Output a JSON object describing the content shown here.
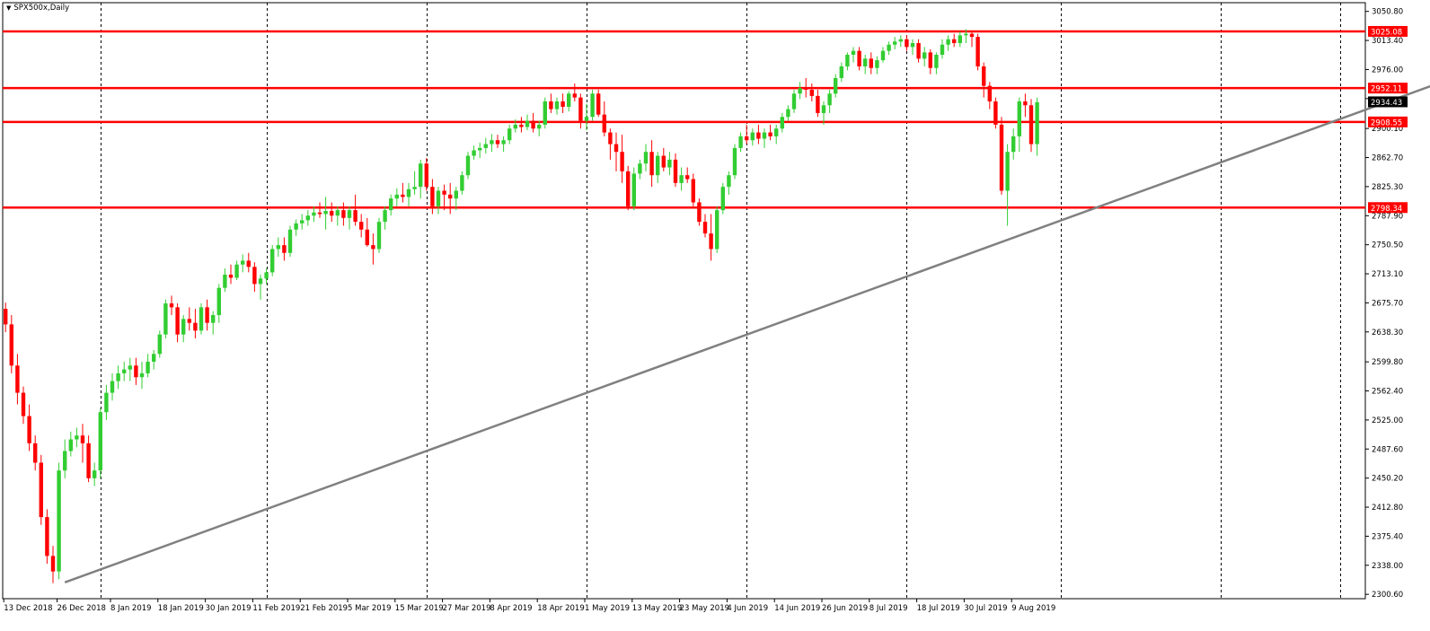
{
  "symbol": {
    "name": "SPX500x,Daily"
  },
  "colors": {
    "bull": "#32CD32",
    "bear": "#FF0000",
    "bull_wick": "#32CD32",
    "bear_wick": "#FF0000",
    "hline": "#FF0000",
    "trendline": "#808080",
    "grid": "#000000",
    "bid_box": "#000000",
    "level_box": "#FF0000"
  },
  "chart_data": {
    "type": "candlestick",
    "y_ticks": [
      3050.8,
      3013.4,
      2976.0,
      2938.6,
      2900.1,
      2862.7,
      2825.3,
      2787.9,
      2750.5,
      2713.1,
      2675.7,
      2638.3,
      2599.8,
      2562.4,
      2525.0,
      2487.6,
      2450.2,
      2412.8,
      2375.4,
      2338.0,
      2300.6
    ],
    "y_tick_labels": [
      "3050.80",
      "3013.40",
      "2976.00",
      "",
      "2900.10",
      "2862.70",
      "2825.30",
      "2787.90",
      "2750.50",
      "2713.10",
      "2675.70",
      "2638.30",
      "2599.80",
      "2562.40",
      "2525.00",
      "2487.60",
      "2450.20",
      "2412.80",
      "2375.40",
      "2338.00",
      "2300.60"
    ],
    "ylim": [
      2295.0,
      3062.0
    ],
    "x_labels": [
      "13 Dec 2018",
      "26 Dec 2018",
      "8 Jan 2019",
      "18 Jan 2019",
      "30 Jan 2019",
      "11 Feb 2019",
      "21 Feb 2019",
      "5 Mar 2019",
      "15 Mar 2019",
      "27 Mar 2019",
      "8 Apr 2019",
      "18 Apr 2019",
      "1 May 2019",
      "13 May 2019",
      "23 May 2019",
      "4 Jun 2019",
      "14 Jun 2019",
      "26 Jun 2019",
      "8 Jul 2019",
      "18 Jul 2019",
      "30 Jul 2019",
      "9 Aug 2019"
    ],
    "x_label_bar": [
      0,
      9,
      18,
      26,
      34,
      42,
      50,
      58,
      66,
      74,
      82,
      90,
      98,
      106,
      114,
      122,
      130,
      138,
      146,
      154,
      162,
      170
    ],
    "vgrid_bars": [
      16,
      44,
      71,
      98,
      125,
      152,
      178,
      205
    ],
    "horizontal_levels": [
      3025.08,
      2952.11,
      2908.55,
      2798.34
    ],
    "horizontal_level_labels": [
      "3025.08",
      "2952.11",
      "2908.55",
      "2798.34"
    ],
    "current_price": 2934.43,
    "current_price_label": "2934.43",
    "trendline": {
      "start": {
        "bar": 10,
        "price": 2316
      },
      "end": {
        "bar": 247,
        "price": 2973
      }
    },
    "candles": [
      [
        2668,
        2676,
        2638,
        2648
      ],
      [
        2648,
        2660,
        2585,
        2595
      ],
      [
        2595,
        2610,
        2545,
        2560
      ],
      [
        2560,
        2568,
        2520,
        2530
      ],
      [
        2530,
        2545,
        2485,
        2495
      ],
      [
        2495,
        2505,
        2460,
        2470
      ],
      [
        2470,
        2480,
        2390,
        2400
      ],
      [
        2400,
        2410,
        2340,
        2350
      ],
      [
        2350,
        2363,
        2315,
        2330
      ],
      [
        2330,
        2470,
        2320,
        2460
      ],
      [
        2460,
        2500,
        2450,
        2485
      ],
      [
        2485,
        2510,
        2478,
        2500
      ],
      [
        2500,
        2515,
        2490,
        2505
      ],
      [
        2505,
        2520,
        2470,
        2495
      ],
      [
        2495,
        2505,
        2445,
        2450
      ],
      [
        2450,
        2470,
        2440,
        2460
      ],
      [
        2460,
        2540,
        2450,
        2535
      ],
      [
        2535,
        2570,
        2525,
        2560
      ],
      [
        2560,
        2585,
        2550,
        2575
      ],
      [
        2575,
        2595,
        2565,
        2585
      ],
      [
        2585,
        2600,
        2575,
        2590
      ],
      [
        2590,
        2605,
        2575,
        2595
      ],
      [
        2595,
        2605,
        2570,
        2580
      ],
      [
        2580,
        2600,
        2565,
        2585
      ],
      [
        2585,
        2610,
        2580,
        2600
      ],
      [
        2600,
        2615,
        2590,
        2610
      ],
      [
        2610,
        2640,
        2605,
        2635
      ],
      [
        2635,
        2680,
        2630,
        2675
      ],
      [
        2675,
        2685,
        2660,
        2670
      ],
      [
        2670,
        2675,
        2625,
        2635
      ],
      [
        2635,
        2660,
        2625,
        2655
      ],
      [
        2655,
        2670,
        2640,
        2650
      ],
      [
        2650,
        2668,
        2630,
        2640
      ],
      [
        2640,
        2675,
        2635,
        2670
      ],
      [
        2670,
        2680,
        2640,
        2650
      ],
      [
        2650,
        2665,
        2635,
        2660
      ],
      [
        2660,
        2700,
        2650,
        2695
      ],
      [
        2695,
        2720,
        2690,
        2712
      ],
      [
        2712,
        2725,
        2700,
        2708
      ],
      [
        2708,
        2730,
        2705,
        2725
      ],
      [
        2725,
        2738,
        2715,
        2730
      ],
      [
        2730,
        2740,
        2715,
        2722
      ],
      [
        2722,
        2728,
        2690,
        2700
      ],
      [
        2700,
        2712,
        2680,
        2707
      ],
      [
        2707,
        2720,
        2700,
        2715
      ],
      [
        2715,
        2750,
        2710,
        2745
      ],
      [
        2745,
        2760,
        2735,
        2750
      ],
      [
        2750,
        2760,
        2730,
        2740
      ],
      [
        2740,
        2775,
        2735,
        2770
      ],
      [
        2770,
        2783,
        2762,
        2778
      ],
      [
        2778,
        2790,
        2770,
        2782
      ],
      [
        2782,
        2795,
        2775,
        2788
      ],
      [
        2788,
        2800,
        2780,
        2792
      ],
      [
        2792,
        2805,
        2785,
        2790
      ],
      [
        2790,
        2812,
        2770,
        2794
      ],
      [
        2794,
        2805,
        2780,
        2788
      ],
      [
        2788,
        2800,
        2775,
        2795
      ],
      [
        2795,
        2805,
        2775,
        2785
      ],
      [
        2785,
        2800,
        2770,
        2795
      ],
      [
        2795,
        2815,
        2775,
        2780
      ],
      [
        2780,
        2790,
        2760,
        2770
      ],
      [
        2770,
        2785,
        2748,
        2750
      ],
      [
        2750,
        2765,
        2725,
        2745
      ],
      [
        2745,
        2785,
        2740,
        2780
      ],
      [
        2780,
        2800,
        2770,
        2795
      ],
      [
        2795,
        2815,
        2788,
        2810
      ],
      [
        2810,
        2823,
        2800,
        2815
      ],
      [
        2815,
        2830,
        2805,
        2812
      ],
      [
        2812,
        2830,
        2800,
        2822
      ],
      [
        2822,
        2845,
        2815,
        2825
      ],
      [
        2825,
        2860,
        2810,
        2855
      ],
      [
        2855,
        2862,
        2820,
        2825
      ],
      [
        2825,
        2835,
        2790,
        2800
      ],
      [
        2800,
        2825,
        2790,
        2820
      ],
      [
        2820,
        2828,
        2795,
        2815
      ],
      [
        2815,
        2830,
        2790,
        2810
      ],
      [
        2810,
        2825,
        2795,
        2820
      ],
      [
        2820,
        2845,
        2815,
        2840
      ],
      [
        2840,
        2870,
        2835,
        2865
      ],
      [
        2865,
        2878,
        2860,
        2872
      ],
      [
        2872,
        2882,
        2862,
        2875
      ],
      [
        2875,
        2888,
        2868,
        2880
      ],
      [
        2880,
        2893,
        2870,
        2885
      ],
      [
        2885,
        2892,
        2875,
        2880
      ],
      [
        2880,
        2890,
        2870,
        2885
      ],
      [
        2885,
        2905,
        2880,
        2900
      ],
      [
        2900,
        2912,
        2895,
        2905
      ],
      [
        2905,
        2915,
        2895,
        2902
      ],
      [
        2902,
        2918,
        2898,
        2910
      ],
      [
        2910,
        2920,
        2895,
        2900
      ],
      [
        2900,
        2910,
        2890,
        2905
      ],
      [
        2905,
        2940,
        2900,
        2935
      ],
      [
        2935,
        2945,
        2920,
        2925
      ],
      [
        2925,
        2940,
        2918,
        2935
      ],
      [
        2935,
        2945,
        2920,
        2928
      ],
      [
        2928,
        2948,
        2922,
        2945
      ],
      [
        2945,
        2958,
        2935,
        2940
      ],
      [
        2940,
        2945,
        2900,
        2910
      ],
      [
        2910,
        2932,
        2898,
        2915
      ],
      [
        2915,
        2950,
        2910,
        2945
      ],
      [
        2945,
        2950,
        2915,
        2918
      ],
      [
        2918,
        2935,
        2890,
        2895
      ],
      [
        2895,
        2900,
        2860,
        2880
      ],
      [
        2880,
        2895,
        2845,
        2870
      ],
      [
        2870,
        2892,
        2830,
        2845
      ],
      [
        2845,
        2852,
        2795,
        2800
      ],
      [
        2800,
        2850,
        2795,
        2842
      ],
      [
        2842,
        2860,
        2835,
        2855
      ],
      [
        2855,
        2880,
        2845,
        2870
      ],
      [
        2870,
        2885,
        2825,
        2840
      ],
      [
        2840,
        2870,
        2830,
        2865
      ],
      [
        2865,
        2875,
        2845,
        2850
      ],
      [
        2850,
        2870,
        2840,
        2860
      ],
      [
        2860,
        2868,
        2825,
        2830
      ],
      [
        2830,
        2850,
        2820,
        2840
      ],
      [
        2840,
        2850,
        2830,
        2835
      ],
      [
        2835,
        2842,
        2800,
        2805
      ],
      [
        2805,
        2810,
        2775,
        2780
      ],
      [
        2780,
        2790,
        2760,
        2765
      ],
      [
        2765,
        2790,
        2730,
        2745
      ],
      [
        2745,
        2800,
        2740,
        2795
      ],
      [
        2795,
        2830,
        2790,
        2825
      ],
      [
        2825,
        2845,
        2815,
        2840
      ],
      [
        2840,
        2880,
        2835,
        2875
      ],
      [
        2875,
        2895,
        2870,
        2890
      ],
      [
        2890,
        2905,
        2880,
        2885
      ],
      [
        2885,
        2900,
        2878,
        2895
      ],
      [
        2895,
        2905,
        2880,
        2887
      ],
      [
        2887,
        2900,
        2875,
        2895
      ],
      [
        2895,
        2905,
        2885,
        2890
      ],
      [
        2890,
        2905,
        2880,
        2900
      ],
      [
        2900,
        2920,
        2895,
        2915
      ],
      [
        2915,
        2930,
        2910,
        2925
      ],
      [
        2925,
        2950,
        2920,
        2945
      ],
      [
        2945,
        2960,
        2938,
        2952
      ],
      [
        2952,
        2965,
        2940,
        2950
      ],
      [
        2950,
        2958,
        2935,
        2942
      ],
      [
        2942,
        2950,
        2915,
        2920
      ],
      [
        2920,
        2935,
        2905,
        2930
      ],
      [
        2930,
        2950,
        2920,
        2945
      ],
      [
        2945,
        2970,
        2940,
        2965
      ],
      [
        2965,
        2985,
        2960,
        2980
      ],
      [
        2980,
        2998,
        2975,
        2995
      ],
      [
        2995,
        3005,
        2985,
        3000
      ],
      [
        3000,
        3005,
        2975,
        2980
      ],
      [
        2980,
        2995,
        2970,
        2990
      ],
      [
        2990,
        2998,
        2970,
        2978
      ],
      [
        2978,
        2993,
        2970,
        2988
      ],
      [
        2988,
        3005,
        2985,
        3000
      ],
      [
        3000,
        3012,
        2995,
        3008
      ],
      [
        3008,
        3018,
        3002,
        3012
      ],
      [
        3012,
        3020,
        3005,
        3015
      ],
      [
        3015,
        3020,
        3000,
        3005
      ],
      [
        3005,
        3015,
        2995,
        3010
      ],
      [
        3010,
        3015,
        2985,
        2990
      ],
      [
        2990,
        3005,
        2980,
        2998
      ],
      [
        2998,
        3002,
        2970,
        2978
      ],
      [
        2978,
        2998,
        2970,
        2995
      ],
      [
        2995,
        3015,
        2990,
        3008
      ],
      [
        3008,
        3020,
        3000,
        3015
      ],
      [
        3015,
        3022,
        3005,
        3010
      ],
      [
        3010,
        3025,
        3005,
        3020
      ],
      [
        3020,
        3028,
        3010,
        3022
      ],
      [
        3022,
        3025,
        3005,
        3018
      ],
      [
        3018,
        3022,
        2975,
        2980
      ],
      [
        2980,
        2985,
        2940,
        2955
      ],
      [
        2955,
        2960,
        2925,
        2935
      ],
      [
        2935,
        2940,
        2900,
        2905
      ],
      [
        2905,
        2915,
        2815,
        2820
      ],
      [
        2820,
        2880,
        2775,
        2870
      ],
      [
        2870,
        2900,
        2860,
        2890
      ],
      [
        2890,
        2940,
        2870,
        2935
      ],
      [
        2935,
        2945,
        2915,
        2930
      ],
      [
        2930,
        2938,
        2870,
        2880
      ],
      [
        2880,
        2940,
        2865,
        2934
      ]
    ]
  }
}
